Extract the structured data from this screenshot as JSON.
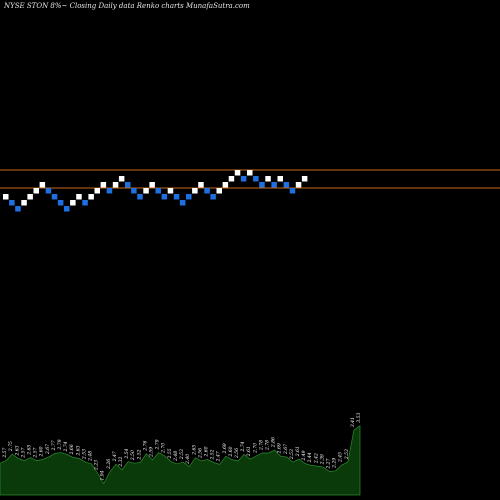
{
  "caption": "NYSE STON  8%~  Closing Daily data  Renko  charts MunafaSutra.com",
  "colors": {
    "background": "#000000",
    "up_brick": "#ffffff",
    "down_brick": "#1e6fe0",
    "reference_line": "#c96a1a",
    "volume_fill": "#0a3a0a",
    "volume_outline": "#2d8a2d",
    "volume_label": "#ffffff"
  },
  "chart_data": [
    {
      "type": "renko",
      "brick_size": 1,
      "y_range": [
        -6,
        4
      ],
      "reference_levels": [
        3.5,
        0.5
      ],
      "bricks": [
        {
          "dir": "up",
          "level": -1
        },
        {
          "dir": "down",
          "level": -2
        },
        {
          "dir": "down",
          "level": -3
        },
        {
          "dir": "up",
          "level": -2
        },
        {
          "dir": "up",
          "level": -1
        },
        {
          "dir": "up",
          "level": 0
        },
        {
          "dir": "up",
          "level": 1
        },
        {
          "dir": "down",
          "level": 0
        },
        {
          "dir": "down",
          "level": -1
        },
        {
          "dir": "down",
          "level": -2
        },
        {
          "dir": "down",
          "level": -3
        },
        {
          "dir": "up",
          "level": -2
        },
        {
          "dir": "up",
          "level": -1
        },
        {
          "dir": "down",
          "level": -2
        },
        {
          "dir": "up",
          "level": -1
        },
        {
          "dir": "up",
          "level": 0
        },
        {
          "dir": "up",
          "level": 1
        },
        {
          "dir": "down",
          "level": 0
        },
        {
          "dir": "up",
          "level": 1
        },
        {
          "dir": "up",
          "level": 2
        },
        {
          "dir": "down",
          "level": 1
        },
        {
          "dir": "down",
          "level": 0
        },
        {
          "dir": "down",
          "level": -1
        },
        {
          "dir": "up",
          "level": 0
        },
        {
          "dir": "up",
          "level": 1
        },
        {
          "dir": "down",
          "level": 0
        },
        {
          "dir": "down",
          "level": -1
        },
        {
          "dir": "up",
          "level": 0
        },
        {
          "dir": "down",
          "level": -1
        },
        {
          "dir": "down",
          "level": -2
        },
        {
          "dir": "down",
          "level": -1
        },
        {
          "dir": "up",
          "level": 0
        },
        {
          "dir": "up",
          "level": 1
        },
        {
          "dir": "down",
          "level": 0
        },
        {
          "dir": "down",
          "level": -1
        },
        {
          "dir": "up",
          "level": 0
        },
        {
          "dir": "up",
          "level": 1
        },
        {
          "dir": "up",
          "level": 2
        },
        {
          "dir": "up",
          "level": 3
        },
        {
          "dir": "down",
          "level": 2
        },
        {
          "dir": "up",
          "level": 3
        },
        {
          "dir": "down",
          "level": 2
        },
        {
          "dir": "down",
          "level": 1
        },
        {
          "dir": "up",
          "level": 2
        },
        {
          "dir": "down",
          "level": 1
        },
        {
          "dir": "up",
          "level": 2
        },
        {
          "dir": "down",
          "level": 1
        },
        {
          "dir": "down",
          "level": 0
        },
        {
          "dir": "up",
          "level": 1
        },
        {
          "dir": "up",
          "level": 2
        }
      ],
      "volume": {
        "values": [
          2.5,
          2.57,
          2.75,
          2.63,
          2.57,
          2.65,
          2.57,
          2.6,
          2.67,
          2.77,
          2.79,
          2.74,
          2.66,
          2.63,
          2.53,
          2.48,
          2.23,
          1.94,
          2.26,
          2.47,
          2.32,
          2.54,
          2.5,
          2.52,
          2.76,
          2.59,
          2.79,
          2.7,
          2.55,
          2.48,
          2.53,
          2.4,
          2.65,
          2.56,
          2.6,
          2.52,
          2.47,
          2.69,
          2.6,
          2.56,
          2.74,
          2.61,
          2.7,
          2.78,
          2.78,
          2.86,
          2.69,
          2.67,
          2.53,
          2.61,
          2.49,
          2.44,
          2.42,
          2.39,
          2.27,
          2.29,
          2.45,
          2.53,
          3.41,
          3.53
        ],
        "labels": [
          "2.50",
          "2.57",
          "2.75",
          "2.63",
          "2.57",
          "2.65",
          "2.57",
          "2.60",
          "2.67",
          "2.77",
          "2.79",
          "2.74",
          "2.66",
          "2.63",
          "2.53",
          "2.48",
          "2.23",
          "1.94",
          "2.26",
          "2.47",
          "2.32",
          "2.54",
          "2.50",
          "2.52",
          "2.76",
          "2.59",
          "2.79",
          "2.70",
          "2.55",
          "2.48",
          "2.53",
          "2.40",
          "2.65",
          "2.56",
          "2.60",
          "2.52",
          "2.47",
          "2.69",
          "2.60",
          "2.56",
          "2.74",
          "2.61",
          "2.70",
          "2.78",
          "2.78",
          "2.86",
          "2.69",
          "2.67",
          "2.53",
          "2.61",
          "2.49",
          "2.44",
          "2.42",
          "2.39",
          "2.27",
          "2.29",
          "2.45",
          "2.53",
          "3.41",
          "3.53"
        ]
      }
    }
  ]
}
